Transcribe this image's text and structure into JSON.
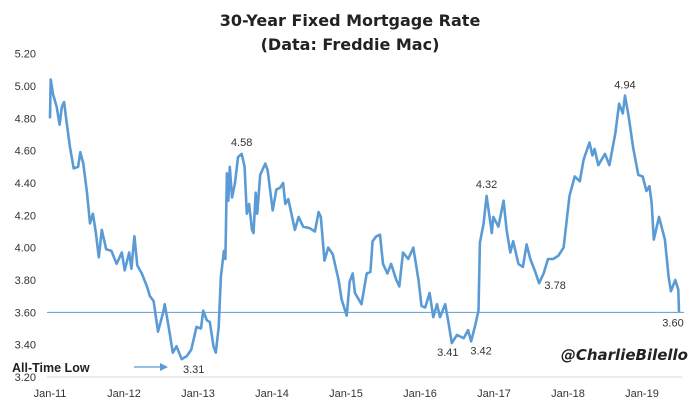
{
  "chart_data": {
    "type": "line",
    "title": "30-Year Fixed Mortgage Rate",
    "subtitle": "(Data: Freddie Mac)",
    "xlabel": "",
    "ylabel": "",
    "ylim": [
      3.2,
      5.2
    ],
    "xlim": [
      2011.0,
      2019.5
    ],
    "grid": false,
    "yticks": [
      "3.20",
      "3.40",
      "3.60",
      "3.80",
      "4.00",
      "4.20",
      "4.40",
      "4.60",
      "4.80",
      "5.00",
      "5.20"
    ],
    "xticks": [
      {
        "label": "Jan-11",
        "value": 2011
      },
      {
        "label": "Jan-12",
        "value": 2012
      },
      {
        "label": "Jan-13",
        "value": 2013
      },
      {
        "label": "Jan-14",
        "value": 2014
      },
      {
        "label": "Jan-15",
        "value": 2015
      },
      {
        "label": "Jan-16",
        "value": 2016
      },
      {
        "label": "Jan-17",
        "value": 2017
      },
      {
        "label": "Jan-18",
        "value": 2018
      },
      {
        "label": "Jan-19",
        "value": 2019
      }
    ],
    "color": "#5b9bd5",
    "reference_line": {
      "value": 3.6
    },
    "series": [
      {
        "name": "30-Year Fixed Mortgage Rate",
        "points": [
          [
            2011.0,
            4.8
          ],
          [
            2011.01,
            5.04
          ],
          [
            2011.04,
            4.95
          ],
          [
            2011.09,
            4.87
          ],
          [
            2011.13,
            4.76
          ],
          [
            2011.16,
            4.87
          ],
          [
            2011.19,
            4.9
          ],
          [
            2011.22,
            4.79
          ],
          [
            2011.27,
            4.62
          ],
          [
            2011.32,
            4.49
          ],
          [
            2011.38,
            4.5
          ],
          [
            2011.41,
            4.59
          ],
          [
            2011.45,
            4.52
          ],
          [
            2011.5,
            4.34
          ],
          [
            2011.54,
            4.15
          ],
          [
            2011.58,
            4.21
          ],
          [
            2011.62,
            4.09
          ],
          [
            2011.66,
            3.94
          ],
          [
            2011.7,
            4.11
          ],
          [
            2011.76,
            3.99
          ],
          [
            2011.83,
            3.98
          ],
          [
            2011.9,
            3.9
          ],
          [
            2011.97,
            3.97
          ],
          [
            2012.01,
            3.86
          ],
          [
            2012.07,
            3.97
          ],
          [
            2012.1,
            3.87
          ],
          [
            2012.14,
            4.07
          ],
          [
            2012.18,
            3.89
          ],
          [
            2012.24,
            3.84
          ],
          [
            2012.31,
            3.76
          ],
          [
            2012.35,
            3.7
          ],
          [
            2012.4,
            3.67
          ],
          [
            2012.46,
            3.48
          ],
          [
            2012.53,
            3.6
          ],
          [
            2012.55,
            3.65
          ],
          [
            2012.6,
            3.52
          ],
          [
            2012.66,
            3.35
          ],
          [
            2012.71,
            3.39
          ],
          [
            2012.78,
            3.31
          ],
          [
            2012.85,
            3.33
          ],
          [
            2012.91,
            3.37
          ],
          [
            2012.98,
            3.51
          ],
          [
            2013.04,
            3.5
          ],
          [
            2013.07,
            3.61
          ],
          [
            2013.12,
            3.55
          ],
          [
            2013.16,
            3.54
          ],
          [
            2013.21,
            3.39
          ],
          [
            2013.24,
            3.35
          ],
          [
            2013.28,
            3.51
          ],
          [
            2013.31,
            3.82
          ],
          [
            2013.35,
            3.98
          ],
          [
            2013.37,
            3.93
          ],
          [
            2013.39,
            4.46
          ],
          [
            2013.41,
            4.29
          ],
          [
            2013.43,
            4.5
          ],
          [
            2013.46,
            4.31
          ],
          [
            2013.5,
            4.4
          ],
          [
            2013.54,
            4.56
          ],
          [
            2013.59,
            4.58
          ],
          [
            2013.63,
            4.5
          ],
          [
            2013.66,
            4.21
          ],
          [
            2013.69,
            4.27
          ],
          [
            2013.73,
            4.11
          ],
          [
            2013.75,
            4.09
          ],
          [
            2013.78,
            4.34
          ],
          [
            2013.8,
            4.21
          ],
          [
            2013.84,
            4.45
          ],
          [
            2013.91,
            4.52
          ],
          [
            2013.94,
            4.48
          ],
          [
            2014.01,
            4.23
          ],
          [
            2014.06,
            4.36
          ],
          [
            2014.11,
            4.37
          ],
          [
            2014.15,
            4.4
          ],
          [
            2014.18,
            4.27
          ],
          [
            2014.22,
            4.3
          ],
          [
            2014.31,
            4.11
          ],
          [
            2014.36,
            4.19
          ],
          [
            2014.42,
            4.13
          ],
          [
            2014.51,
            4.12
          ],
          [
            2014.58,
            4.1
          ],
          [
            2014.63,
            4.22
          ],
          [
            2014.66,
            4.19
          ],
          [
            2014.71,
            3.92
          ],
          [
            2014.76,
            4.0
          ],
          [
            2014.82,
            3.96
          ],
          [
            2014.86,
            3.88
          ],
          [
            2014.9,
            3.8
          ],
          [
            2014.94,
            3.68
          ],
          [
            2015.01,
            3.58
          ],
          [
            2015.05,
            3.79
          ],
          [
            2015.09,
            3.84
          ],
          [
            2015.12,
            3.72
          ],
          [
            2015.21,
            3.65
          ],
          [
            2015.28,
            3.84
          ],
          [
            2015.33,
            3.85
          ],
          [
            2015.36,
            4.04
          ],
          [
            2015.41,
            4.07
          ],
          [
            2015.46,
            4.08
          ],
          [
            2015.5,
            3.9
          ],
          [
            2015.56,
            3.84
          ],
          [
            2015.61,
            3.9
          ],
          [
            2015.68,
            3.8
          ],
          [
            2015.72,
            3.76
          ],
          [
            2015.77,
            3.97
          ],
          [
            2015.84,
            3.93
          ],
          [
            2015.91,
            4.0
          ],
          [
            2015.98,
            3.8
          ],
          [
            2016.02,
            3.64
          ],
          [
            2016.07,
            3.63
          ],
          [
            2016.13,
            3.72
          ],
          [
            2016.18,
            3.57
          ],
          [
            2016.23,
            3.65
          ],
          [
            2016.27,
            3.57
          ],
          [
            2016.34,
            3.65
          ],
          [
            2016.38,
            3.55
          ],
          [
            2016.43,
            3.41
          ],
          [
            2016.5,
            3.46
          ],
          [
            2016.59,
            3.44
          ],
          [
            2016.65,
            3.49
          ],
          [
            2016.69,
            3.42
          ],
          [
            2016.74,
            3.51
          ],
          [
            2016.79,
            3.61
          ],
          [
            2016.81,
            4.03
          ],
          [
            2016.86,
            4.15
          ],
          [
            2016.9,
            4.32
          ],
          [
            2016.97,
            4.09
          ],
          [
            2016.99,
            4.19
          ],
          [
            2017.06,
            4.13
          ],
          [
            2017.13,
            4.29
          ],
          [
            2017.17,
            4.11
          ],
          [
            2017.22,
            3.97
          ],
          [
            2017.26,
            4.04
          ],
          [
            2017.33,
            3.9
          ],
          [
            2017.39,
            3.88
          ],
          [
            2017.44,
            4.02
          ],
          [
            2017.49,
            3.93
          ],
          [
            2017.55,
            3.86
          ],
          [
            2017.61,
            3.78
          ],
          [
            2017.67,
            3.84
          ],
          [
            2017.73,
            3.93
          ],
          [
            2017.8,
            3.93
          ],
          [
            2017.87,
            3.95
          ],
          [
            2017.94,
            4.0
          ],
          [
            2018.02,
            4.32
          ],
          [
            2018.09,
            4.44
          ],
          [
            2018.16,
            4.41
          ],
          [
            2018.21,
            4.54
          ],
          [
            2018.23,
            4.57
          ],
          [
            2018.29,
            4.65
          ],
          [
            2018.33,
            4.57
          ],
          [
            2018.36,
            4.61
          ],
          [
            2018.41,
            4.51
          ],
          [
            2018.5,
            4.58
          ],
          [
            2018.56,
            4.51
          ],
          [
            2018.64,
            4.71
          ],
          [
            2018.69,
            4.89
          ],
          [
            2018.74,
            4.83
          ],
          [
            2018.77,
            4.94
          ],
          [
            2018.82,
            4.81
          ],
          [
            2018.88,
            4.62
          ],
          [
            2018.95,
            4.45
          ],
          [
            2019.01,
            4.44
          ],
          [
            2019.06,
            4.35
          ],
          [
            2019.1,
            4.38
          ],
          [
            2019.13,
            4.28
          ],
          [
            2019.16,
            4.05
          ],
          [
            2019.23,
            4.19
          ],
          [
            2019.31,
            4.05
          ],
          [
            2019.36,
            3.82
          ],
          [
            2019.39,
            3.73
          ],
          [
            2019.45,
            3.8
          ],
          [
            2019.49,
            3.74
          ],
          [
            2019.5,
            3.6
          ]
        ]
      }
    ],
    "annotations": [
      {
        "text": "4.58",
        "x": 2013.59,
        "y": 4.58
      },
      {
        "text": "3.31",
        "x": 2012.78,
        "y": 3.31
      },
      {
        "text": "4.32",
        "x": 2016.9,
        "y": 4.32
      },
      {
        "text": "3.41",
        "x": 2016.43,
        "y": 3.41
      },
      {
        "text": "3.42",
        "x": 2016.69,
        "y": 3.42
      },
      {
        "text": "3.78",
        "x": 2017.61,
        "y": 3.78
      },
      {
        "text": "4.94",
        "x": 2018.77,
        "y": 4.94
      },
      {
        "text": "3.60",
        "x": 2019.5,
        "y": 3.6
      }
    ],
    "callout": "All-Time Low",
    "watermark": "@CharlieBilello"
  }
}
